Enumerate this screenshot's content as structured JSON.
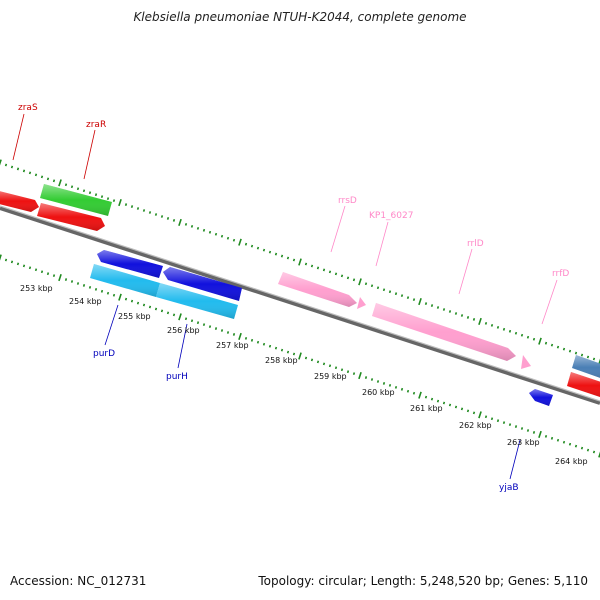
{
  "title": "Klebsiella pneumoniae NTUH-K2044, complete genome",
  "accession": "Accession: NC_012731",
  "topology": "Topology: circular; Length: 5,248,520 bp; Genes: 5,110",
  "colors": {
    "backbone": "#7a7a7a",
    "tick": "#1f8a1f",
    "red_gene": "#ee1111",
    "green_gene": "#33cc33",
    "blue_gene": "#1111dd",
    "cyan_gene": "#22bbee",
    "pink_gene": "#ff9fcf",
    "steel_gene": "#4a7fb5",
    "label_red": "#cc0000",
    "label_blue": "#0000bb",
    "label_pink": "#ff88c8"
  },
  "kbp_labels": [
    "253 kbp",
    "254 kbp",
    "255 kbp",
    "256 kbp",
    "257 kbp",
    "258 kbp",
    "259 kbp",
    "260 kbp",
    "261 kbp",
    "262 kbp",
    "263 kbp",
    "264 kbp"
  ],
  "gene_labels": [
    {
      "text": "zraS",
      "color_key": "label_red"
    },
    {
      "text": "zraR",
      "color_key": "label_red"
    },
    {
      "text": "rrsD",
      "color_key": "label_pink"
    },
    {
      "text": "KP1_6027",
      "color_key": "label_pink"
    },
    {
      "text": "rrlD",
      "color_key": "label_pink"
    },
    {
      "text": "rrfD",
      "color_key": "label_pink"
    },
    {
      "text": "purD",
      "color_key": "label_blue"
    },
    {
      "text": "purH",
      "color_key": "label_blue"
    },
    {
      "text": "yjaB",
      "color_key": "label_blue"
    }
  ]
}
